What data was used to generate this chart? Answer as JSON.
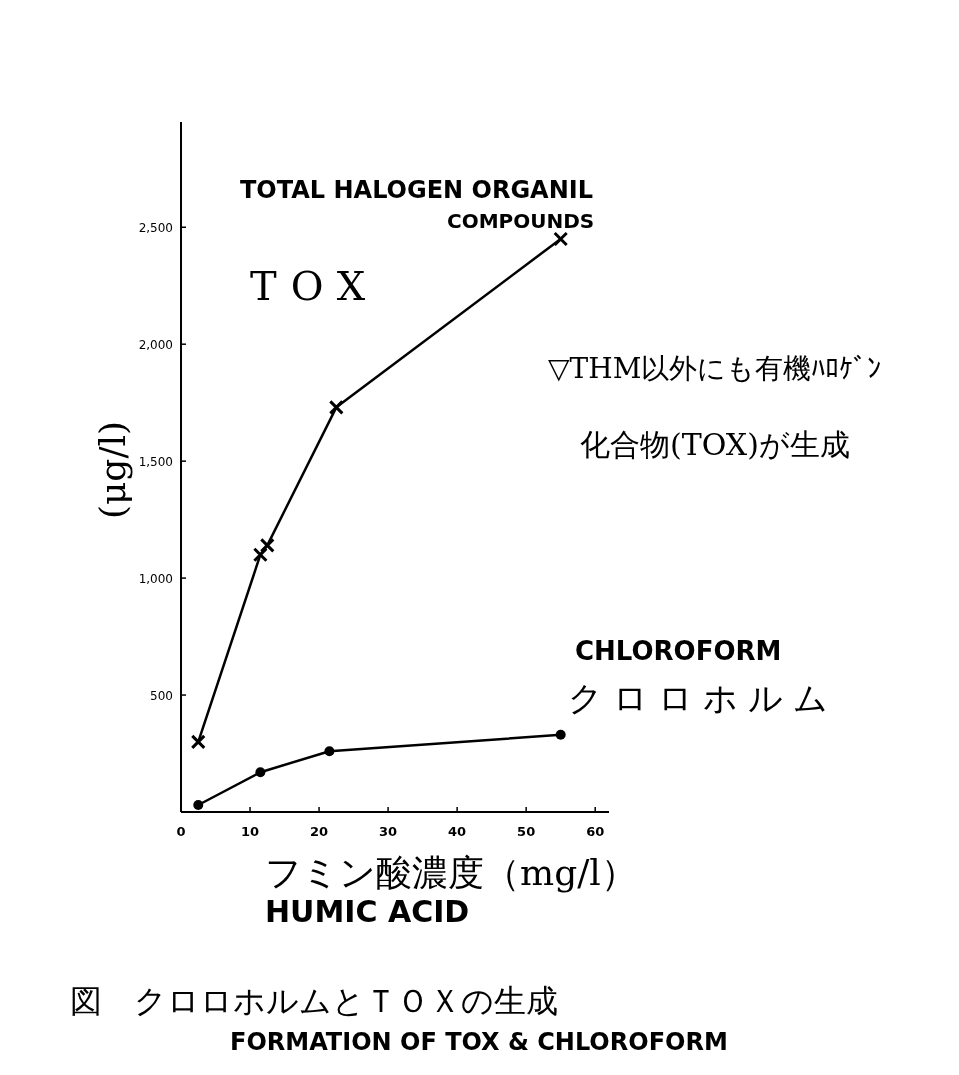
{
  "chart_data": {
    "type": "line",
    "title": "図　クロロホルムとＴＯＸの生成",
    "xlabel": "フミン酸濃度（mg/l）",
    "ylabel": "(μg/l)",
    "annotations": [
      "TOTAL HALOGEN ORGANIL",
      "COMPOUNDS",
      "▽THM以外にも有機ﾊﾛｹﾞﾝ",
      "化合物(TOX)が生成",
      "CHLOROFORM",
      "HUMIC ACID",
      "FORMATION OF TOX & CHLOROFORM"
    ],
    "series": [
      {
        "name": "TOX",
        "color": "#000000",
        "marker": "cross",
        "x": [
          2.5,
          11.5,
          12.5,
          22.5,
          55
        ],
        "values": [
          300,
          1100,
          1140,
          1730,
          2450
        ]
      },
      {
        "name": "クロロホルム",
        "color": "#000000",
        "marker": "circle",
        "x": [
          2.5,
          11.5,
          21.5,
          55
        ],
        "values": [
          30,
          170,
          260,
          330
        ]
      }
    ],
    "xlim": [
      0,
      62
    ],
    "xticks": [
      0,
      10,
      20,
      30,
      40,
      50,
      60
    ],
    "ylim": [
      0,
      2950
    ],
    "yticks": [
      {
        "value": 500,
        "label": "500"
      },
      {
        "value": 1000,
        "label": "1,000"
      },
      {
        "value": 1500,
        "label": "1,500"
      },
      {
        "value": 2000,
        "label": "2,000"
      },
      {
        "value": 2500,
        "label": "2,500"
      }
    ],
    "grid": false,
    "line_style": "solid"
  }
}
